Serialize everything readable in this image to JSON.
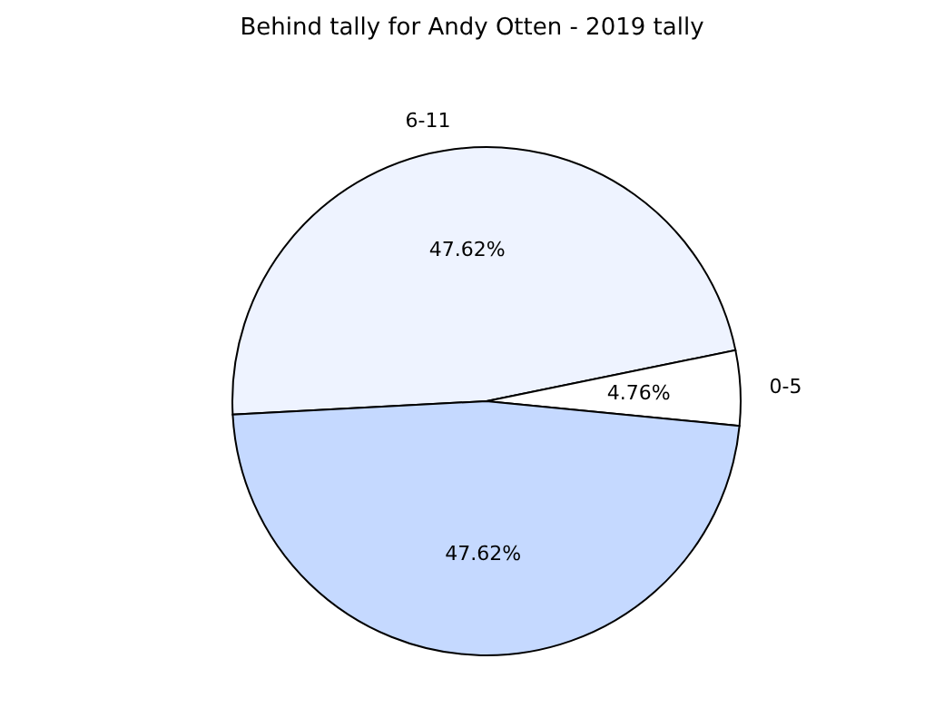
{
  "chart_data": {
    "type": "pie",
    "title": "Behind tally for Andy Otten - 2019 tally",
    "categories": [
      "6-11",
      "0-5",
      null
    ],
    "values": [
      47.62,
      4.76,
      47.62
    ],
    "value_labels": [
      "47.62%",
      "4.76%",
      "47.62%"
    ],
    "colors": [
      "#eef3ff",
      "#ffffff",
      "#c5d9ff"
    ]
  }
}
